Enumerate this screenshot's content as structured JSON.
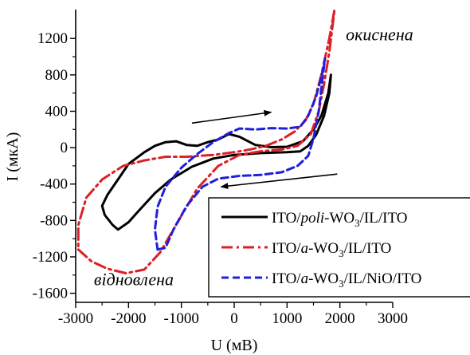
{
  "chart_data": {
    "type": "line",
    "title": "",
    "xlabel": "U (мВ)",
    "ylabel": "I (мкА)",
    "xlim": [
      -3000,
      3000
    ],
    "ylim": [
      -1700,
      1500
    ],
    "xticks": [
      -3000,
      -2000,
      -1000,
      0,
      1000,
      2000,
      3000
    ],
    "yticks": [
      -1600,
      -1200,
      -800,
      -400,
      0,
      400,
      800,
      1200
    ],
    "grid": false,
    "legend_position": "bottom-right",
    "annotations": [
      {
        "text": "окиснена",
        "x": 2750,
        "y": 1180
      },
      {
        "text": "відновлена",
        "x": -1900,
        "y": -1510
      },
      {
        "text": "→",
        "kind": "arrow-right",
        "from": [
          -800,
          270
        ],
        "to": [
          700,
          390
        ]
      },
      {
        "text": "←",
        "kind": "arrow-left",
        "from": [
          1950,
          -290
        ],
        "to": [
          -250,
          -430
        ]
      }
    ],
    "series": [
      {
        "name": "ITO/poli-WO3/IL/ITO",
        "legend": {
          "prefix": "ITO/",
          "italic": "poli",
          "mid": "-WO",
          "sub": "3",
          "suffix": "/IL/ITO"
        },
        "color": "#000000",
        "dash": "solid",
        "points": [
          [
            -2450,
            -740
          ],
          [
            -2300,
            -850
          ],
          [
            -2200,
            -900
          ],
          [
            -2000,
            -820
          ],
          [
            -1800,
            -690
          ],
          [
            -1500,
            -500
          ],
          [
            -1200,
            -350
          ],
          [
            -800,
            -210
          ],
          [
            -400,
            -120
          ],
          [
            0,
            -80
          ],
          [
            500,
            -60
          ],
          [
            1000,
            -50
          ],
          [
            1250,
            -40
          ],
          [
            1400,
            20
          ],
          [
            1550,
            140
          ],
          [
            1700,
            350
          ],
          [
            1800,
            600
          ],
          [
            1830,
            800
          ],
          [
            1780,
            600
          ],
          [
            1650,
            350
          ],
          [
            1500,
            200
          ],
          [
            1300,
            70
          ],
          [
            1000,
            10
          ],
          [
            700,
            5
          ],
          [
            400,
            30
          ],
          [
            100,
            120
          ],
          [
            -100,
            150
          ],
          [
            -300,
            90
          ],
          [
            -500,
            60
          ],
          [
            -700,
            20
          ],
          [
            -900,
            30
          ],
          [
            -1100,
            70
          ],
          [
            -1300,
            60
          ],
          [
            -1500,
            20
          ],
          [
            -1700,
            -50
          ],
          [
            -2000,
            -180
          ],
          [
            -2200,
            -350
          ],
          [
            -2400,
            -520
          ],
          [
            -2500,
            -640
          ],
          [
            -2450,
            -740
          ]
        ]
      },
      {
        "name": "ITO/a-WO3/IL/ITO",
        "legend": {
          "prefix": "ITO/",
          "italic": "a",
          "mid": "-WO",
          "sub": "3",
          "suffix": "/IL/ITO"
        },
        "color": "#dd1f26",
        "dash": "dashdot",
        "points": [
          [
            -2950,
            -1120
          ],
          [
            -2700,
            -1250
          ],
          [
            -2400,
            -1330
          ],
          [
            -2050,
            -1380
          ],
          [
            -1700,
            -1340
          ],
          [
            -1400,
            -1150
          ],
          [
            -1100,
            -850
          ],
          [
            -700,
            -450
          ],
          [
            -300,
            -200
          ],
          [
            100,
            -80
          ],
          [
            500,
            -40
          ],
          [
            900,
            -20
          ],
          [
            1200,
            20
          ],
          [
            1450,
            150
          ],
          [
            1600,
            400
          ],
          [
            1700,
            700
          ],
          [
            1800,
            1050
          ],
          [
            1900,
            1520
          ],
          [
            1800,
            1200
          ],
          [
            1650,
            800
          ],
          [
            1500,
            480
          ],
          [
            1350,
            300
          ],
          [
            1150,
            180
          ],
          [
            900,
            90
          ],
          [
            600,
            20
          ],
          [
            300,
            -20
          ],
          [
            0,
            -50
          ],
          [
            -400,
            -80
          ],
          [
            -900,
            -100
          ],
          [
            -1300,
            -100
          ],
          [
            -1700,
            -140
          ],
          [
            -2100,
            -200
          ],
          [
            -2500,
            -350
          ],
          [
            -2800,
            -550
          ],
          [
            -2950,
            -850
          ],
          [
            -2950,
            -1120
          ]
        ]
      },
      {
        "name": "ITO/a-WO3/IL/NiO/ITO",
        "legend": {
          "prefix": "ITO/",
          "italic": "a",
          "mid": "-WO",
          "sub": "3",
          "suffix": "/IL/NiO/ITO"
        },
        "color": "#1f1fdd",
        "dash": "dashed",
        "points": [
          [
            -1450,
            -1120
          ],
          [
            -1300,
            -1100
          ],
          [
            -1150,
            -900
          ],
          [
            -900,
            -640
          ],
          [
            -600,
            -430
          ],
          [
            -300,
            -340
          ],
          [
            100,
            -310
          ],
          [
            500,
            -300
          ],
          [
            900,
            -270
          ],
          [
            1200,
            -200
          ],
          [
            1400,
            -90
          ],
          [
            1500,
            100
          ],
          [
            1600,
            400
          ],
          [
            1680,
            800
          ],
          [
            1720,
            980
          ],
          [
            1650,
            780
          ],
          [
            1550,
            560
          ],
          [
            1400,
            350
          ],
          [
            1250,
            230
          ],
          [
            1000,
            210
          ],
          [
            700,
            215
          ],
          [
            400,
            200
          ],
          [
            100,
            210
          ],
          [
            -100,
            160
          ],
          [
            -400,
            60
          ],
          [
            -700,
            -70
          ],
          [
            -1000,
            -220
          ],
          [
            -1300,
            -430
          ],
          [
            -1450,
            -650
          ],
          [
            -1500,
            -900
          ],
          [
            -1450,
            -1120
          ]
        ]
      }
    ]
  }
}
